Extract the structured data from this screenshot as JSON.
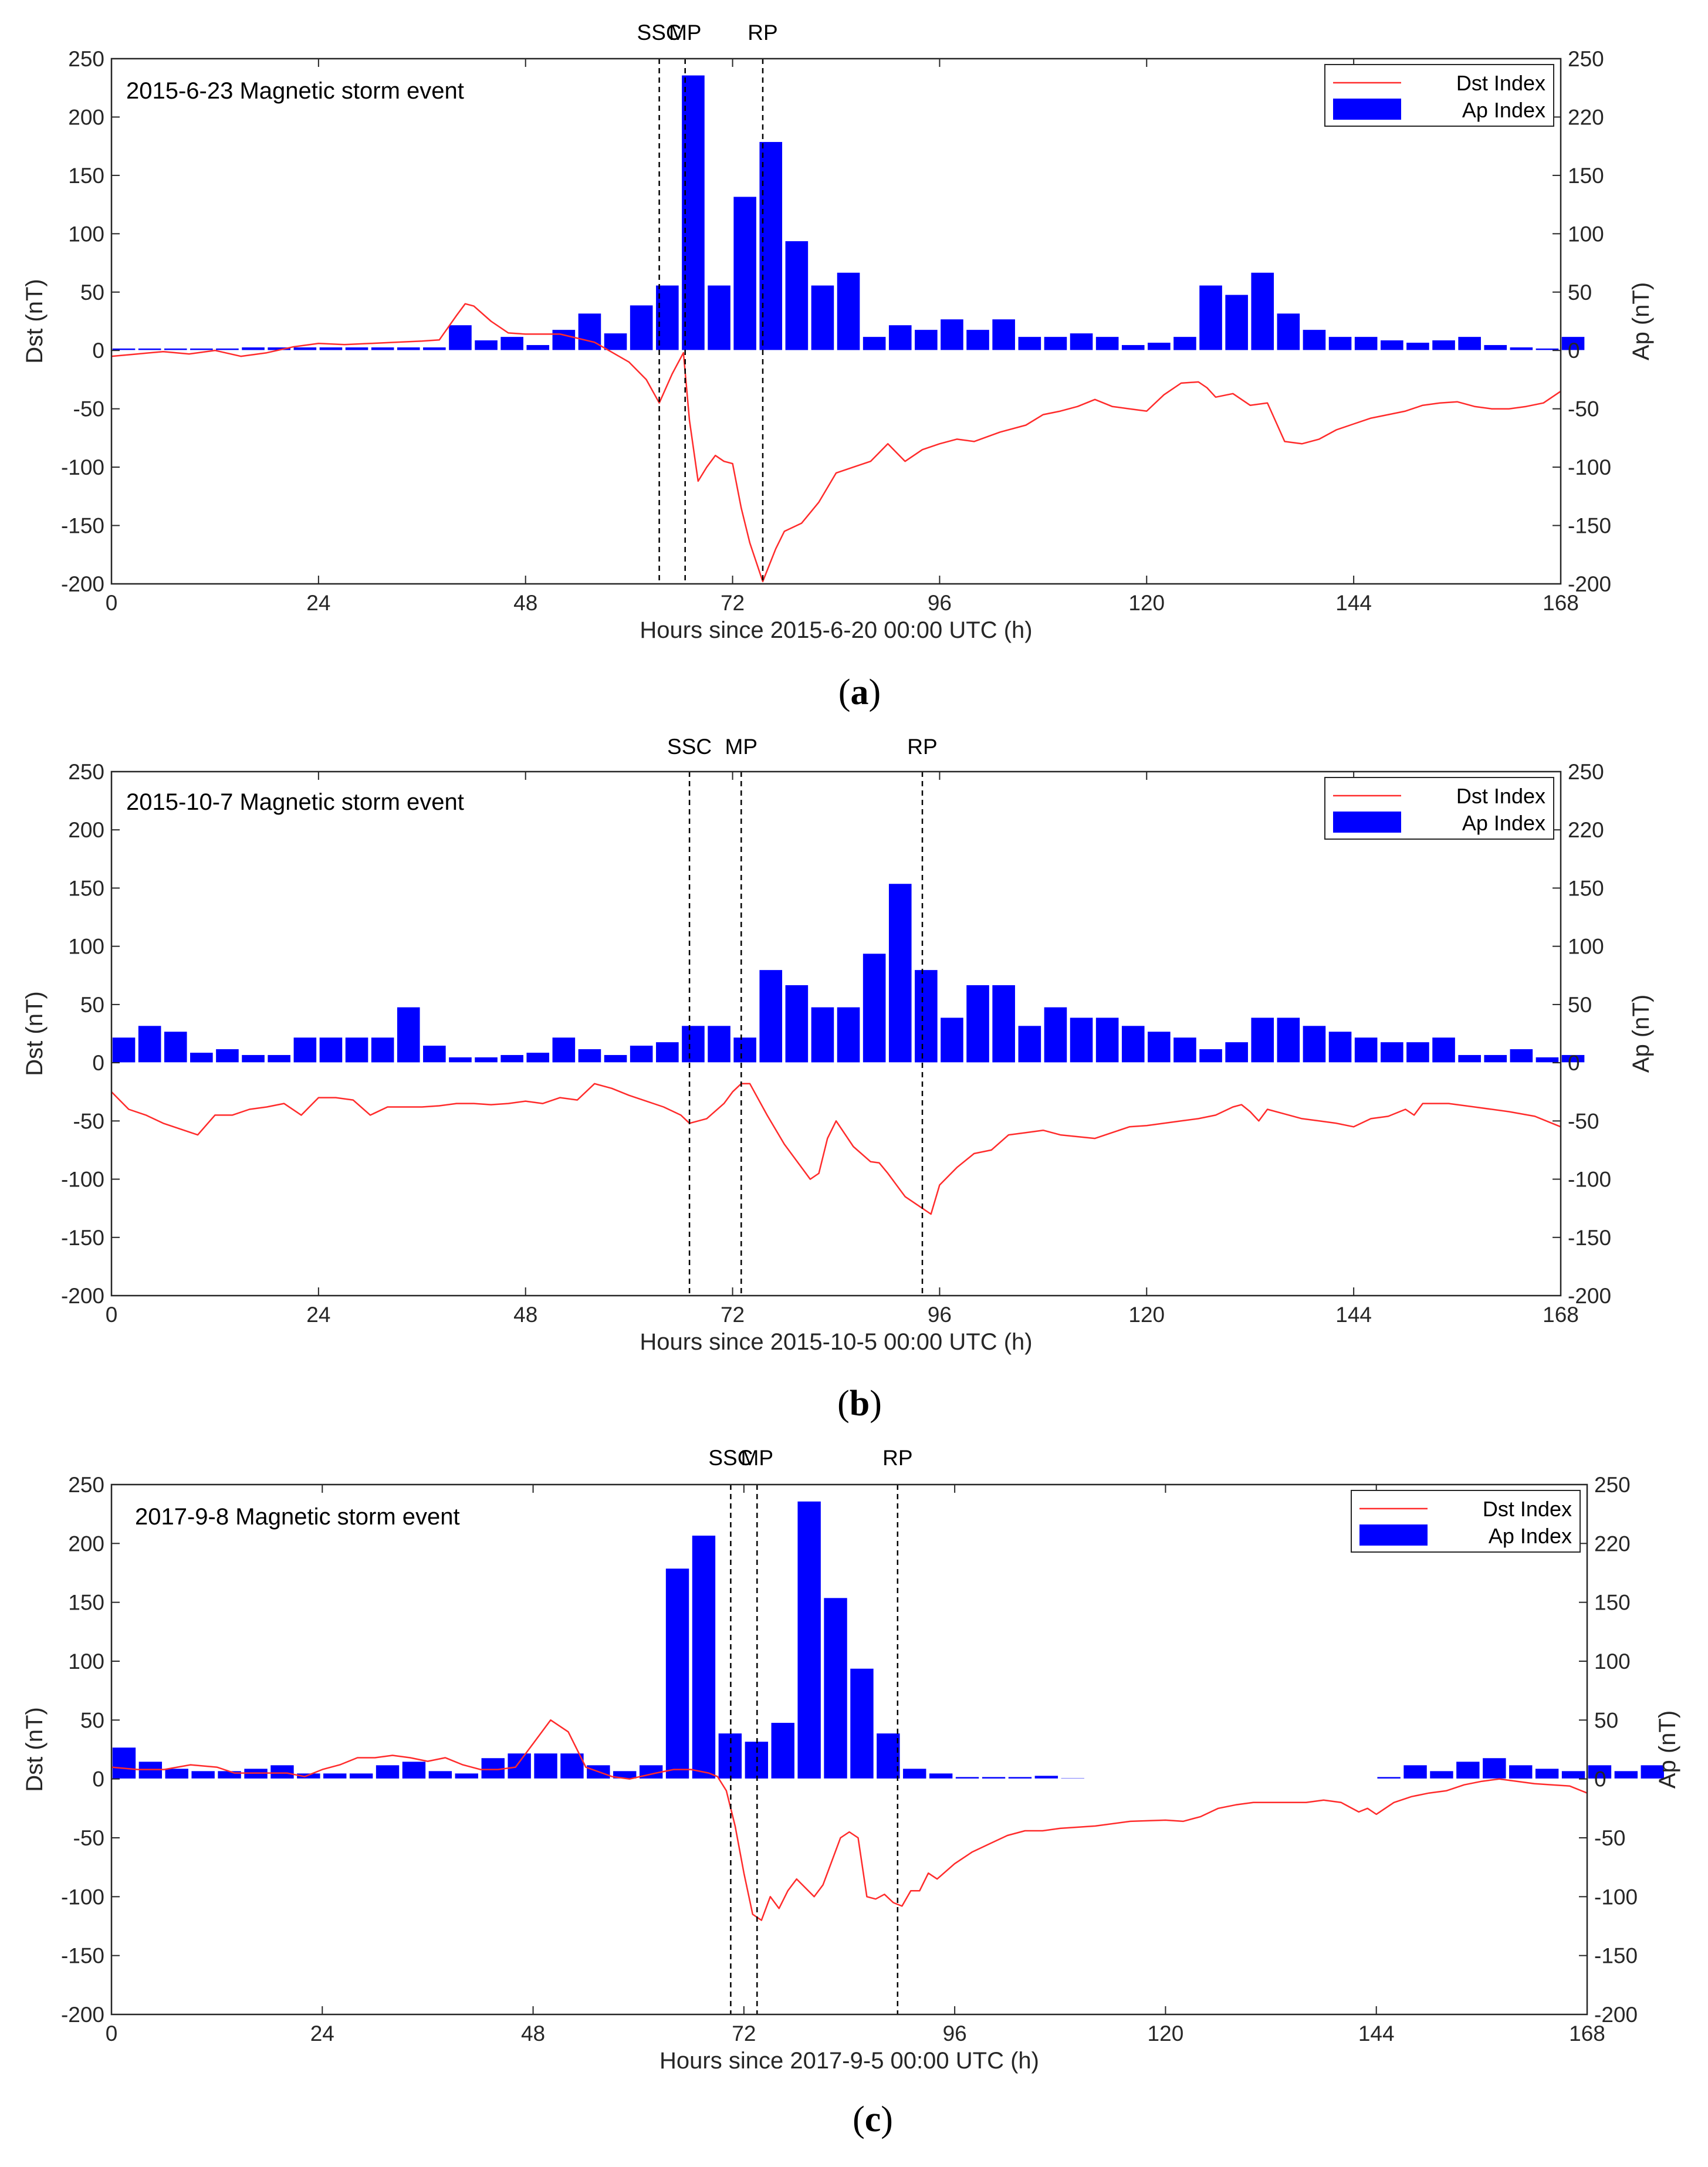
{
  "chart_data": [
    {
      "type": "bar+line",
      "caption": "a",
      "title": "2015-6-23 Magnetic storm event",
      "xlabel": "Hours since 2015-6-20 00:00 UTC (h)",
      "ylabel_left": "Dst (nT)",
      "ylabel_right": "Ap (nT)",
      "xlim": [
        0,
        168
      ],
      "ylim": [
        -200,
        250
      ],
      "x_ticks": [
        0,
        24,
        48,
        72,
        96,
        120,
        144,
        168
      ],
      "y_ticks_left": [
        -200,
        -150,
        -100,
        -50,
        0,
        50,
        100,
        150,
        200,
        250
      ],
      "y_ticks_right": [
        -200,
        -150,
        -100,
        -50,
        0,
        50,
        100,
        150,
        220,
        250
      ],
      "legend": {
        "line": "Dst Index",
        "bar": "Ap Index",
        "position": "top-right"
      },
      "markers": [
        {
          "label": "SSC",
          "x": 63.5
        },
        {
          "label": "MP",
          "x": 66.5
        },
        {
          "label": "RP",
          "x": 75.5
        }
      ],
      "ap_3h": [
        2,
        2,
        2,
        2,
        2,
        3,
        3,
        3,
        3,
        3,
        3,
        3,
        3,
        22,
        9,
        12,
        5,
        18,
        32,
        15,
        39,
        56,
        236,
        56,
        132,
        179,
        94,
        56,
        67,
        12,
        22,
        18,
        27,
        18,
        27,
        12,
        12,
        15,
        12,
        5,
        7,
        12,
        56,
        48,
        67,
        32,
        18,
        12,
        12,
        9,
        7,
        9,
        12,
        5,
        3,
        2,
        12
      ],
      "dst_series": [
        [
          0,
          -5
        ],
        [
          3,
          -3
        ],
        [
          6,
          -1
        ],
        [
          9,
          -3
        ],
        [
          12,
          0
        ],
        [
          15,
          -5
        ],
        [
          18,
          -2
        ],
        [
          21,
          3
        ],
        [
          24,
          6
        ],
        [
          27,
          5
        ],
        [
          30,
          6
        ],
        [
          33,
          7
        ],
        [
          36,
          8
        ],
        [
          38,
          9
        ],
        [
          40,
          30
        ],
        [
          41,
          40
        ],
        [
          42,
          38
        ],
        [
          44,
          25
        ],
        [
          46,
          15
        ],
        [
          48,
          14
        ],
        [
          52,
          14
        ],
        [
          56,
          7
        ],
        [
          60,
          -10
        ],
        [
          62,
          -25
        ],
        [
          63.5,
          -45
        ],
        [
          65,
          -20
        ],
        [
          66.3,
          -2
        ],
        [
          67,
          -60
        ],
        [
          68,
          -112
        ],
        [
          69,
          -100
        ],
        [
          70,
          -90
        ],
        [
          71,
          -95
        ],
        [
          72,
          -97
        ],
        [
          73,
          -135
        ],
        [
          74,
          -165
        ],
        [
          75.5,
          -198
        ],
        [
          77,
          -170
        ],
        [
          78,
          -155
        ],
        [
          80,
          -148
        ],
        [
          82,
          -130
        ],
        [
          84,
          -105
        ],
        [
          86,
          -100
        ],
        [
          88,
          -95
        ],
        [
          90,
          -80
        ],
        [
          92,
          -95
        ],
        [
          94,
          -85
        ],
        [
          96,
          -80
        ],
        [
          98,
          -76
        ],
        [
          100,
          -78
        ],
        [
          103,
          -70
        ],
        [
          106,
          -64
        ],
        [
          108,
          -55
        ],
        [
          110,
          -52
        ],
        [
          112,
          -48
        ],
        [
          114,
          -42
        ],
        [
          116,
          -48
        ],
        [
          118,
          -50
        ],
        [
          120,
          -52
        ],
        [
          122,
          -38
        ],
        [
          124,
          -28
        ],
        [
          126,
          -27
        ],
        [
          127,
          -32
        ],
        [
          128,
          -40
        ],
        [
          130,
          -37
        ],
        [
          132,
          -47
        ],
        [
          134,
          -45
        ],
        [
          136,
          -78
        ],
        [
          138,
          -80
        ],
        [
          140,
          -76
        ],
        [
          142,
          -68
        ],
        [
          144,
          -63
        ],
        [
          146,
          -58
        ],
        [
          148,
          -55
        ],
        [
          150,
          -52
        ],
        [
          152,
          -47
        ],
        [
          154,
          -45
        ],
        [
          156,
          -44
        ],
        [
          158,
          -48
        ],
        [
          160,
          -50
        ],
        [
          162,
          -50
        ],
        [
          164,
          -48
        ],
        [
          166,
          -45
        ],
        [
          168,
          -35
        ]
      ]
    },
    {
      "type": "bar+line",
      "caption": "b",
      "title": "2015-10-7 Magnetic storm event",
      "xlabel": "Hours since 2015-10-5 00:00 UTC (h)",
      "ylabel_left": "Dst (nT)",
      "ylabel_right": "Ap (nT)",
      "xlim": [
        0,
        168
      ],
      "ylim": [
        -200,
        250
      ],
      "x_ticks": [
        0,
        24,
        48,
        72,
        96,
        120,
        144,
        168
      ],
      "y_ticks_left": [
        -200,
        -150,
        -100,
        -50,
        0,
        50,
        100,
        150,
        200,
        250
      ],
      "y_ticks_right": [
        -200,
        -150,
        -100,
        -50,
        0,
        50,
        100,
        150,
        220,
        250
      ],
      "legend": {
        "line": "Dst Index",
        "bar": "Ap Index",
        "position": "top-right"
      },
      "markers": [
        {
          "label": "SSC",
          "x": 67
        },
        {
          "label": "MP",
          "x": 73
        },
        {
          "label": "RP",
          "x": 94
        }
      ],
      "ap_3h": [
        22,
        32,
        27,
        9,
        12,
        7,
        7,
        22,
        22,
        22,
        22,
        48,
        15,
        5,
        5,
        7,
        9,
        22,
        12,
        7,
        15,
        18,
        32,
        32,
        22,
        80,
        67,
        48,
        48,
        94,
        154,
        80,
        39,
        67,
        67,
        32,
        48,
        39,
        39,
        32,
        27,
        22,
        12,
        18,
        39,
        39,
        32,
        27,
        22,
        18,
        18,
        22,
        7,
        7,
        12,
        5,
        7
      ],
      "dst_series": [
        [
          0,
          -25
        ],
        [
          2,
          -40
        ],
        [
          4,
          -45
        ],
        [
          6,
          -52
        ],
        [
          8,
          -57
        ],
        [
          10,
          -62
        ],
        [
          12,
          -45
        ],
        [
          14,
          -45
        ],
        [
          16,
          -40
        ],
        [
          18,
          -38
        ],
        [
          20,
          -35
        ],
        [
          22,
          -45
        ],
        [
          24,
          -30
        ],
        [
          26,
          -30
        ],
        [
          28,
          -32
        ],
        [
          30,
          -45
        ],
        [
          32,
          -38
        ],
        [
          34,
          -38
        ],
        [
          36,
          -38
        ],
        [
          38,
          -37
        ],
        [
          40,
          -35
        ],
        [
          42,
          -35
        ],
        [
          44,
          -36
        ],
        [
          46,
          -35
        ],
        [
          48,
          -33
        ],
        [
          50,
          -35
        ],
        [
          52,
          -30
        ],
        [
          54,
          -32
        ],
        [
          56,
          -18
        ],
        [
          58,
          -22
        ],
        [
          60,
          -28
        ],
        [
          62,
          -33
        ],
        [
          64,
          -38
        ],
        [
          66,
          -45
        ],
        [
          67,
          -52
        ],
        [
          69,
          -48
        ],
        [
          71,
          -35
        ],
        [
          72,
          -25
        ],
        [
          73,
          -18
        ],
        [
          74,
          -18
        ],
        [
          76,
          -45
        ],
        [
          78,
          -70
        ],
        [
          80,
          -90
        ],
        [
          81,
          -100
        ],
        [
          82,
          -95
        ],
        [
          83,
          -65
        ],
        [
          84,
          -50
        ],
        [
          86,
          -72
        ],
        [
          88,
          -85
        ],
        [
          89,
          -86
        ],
        [
          90,
          -95
        ],
        [
          92,
          -115
        ],
        [
          94,
          -125
        ],
        [
          95,
          -130
        ],
        [
          96,
          -105
        ],
        [
          98,
          -90
        ],
        [
          100,
          -78
        ],
        [
          102,
          -75
        ],
        [
          104,
          -62
        ],
        [
          106,
          -60
        ],
        [
          108,
          -58
        ],
        [
          110,
          -62
        ],
        [
          114,
          -65
        ],
        [
          116,
          -60
        ],
        [
          118,
          -55
        ],
        [
          120,
          -54
        ],
        [
          122,
          -52
        ],
        [
          124,
          -50
        ],
        [
          126,
          -48
        ],
        [
          128,
          -45
        ],
        [
          130,
          -38
        ],
        [
          131,
          -36
        ],
        [
          132,
          -42
        ],
        [
          133,
          -50
        ],
        [
          134,
          -40
        ],
        [
          136,
          -44
        ],
        [
          138,
          -48
        ],
        [
          140,
          -50
        ],
        [
          142,
          -52
        ],
        [
          144,
          -55
        ],
        [
          146,
          -48
        ],
        [
          148,
          -46
        ],
        [
          150,
          -40
        ],
        [
          151,
          -45
        ],
        [
          152,
          -35
        ],
        [
          155,
          -35
        ],
        [
          158,
          -38
        ],
        [
          162,
          -42
        ],
        [
          165,
          -46
        ],
        [
          168,
          -55
        ]
      ]
    },
    {
      "type": "bar+line",
      "caption": "c",
      "title": "2017-9-8 Magnetic storm event",
      "xlabel": "Hours since 2017-9-5 00:00 UTC (h)",
      "ylabel_left": "Dst (nT)",
      "ylabel_right": "Ap (nT)",
      "xlim": [
        0,
        168
      ],
      "ylim": [
        -200,
        250
      ],
      "x_ticks": [
        0,
        24,
        48,
        72,
        96,
        120,
        144,
        168
      ],
      "y_ticks_left": [
        -200,
        -150,
        -100,
        -50,
        0,
        50,
        100,
        150,
        200,
        250
      ],
      "y_ticks_right": [
        -200,
        -150,
        -100,
        -50,
        0,
        50,
        100,
        150,
        220,
        250
      ],
      "legend": {
        "line": "Dst Index",
        "bar": "Ap Index",
        "position": "top-right"
      },
      "markers": [
        {
          "label": "SSC",
          "x": 70.5
        },
        {
          "label": "MP",
          "x": 73.5
        },
        {
          "label": "RP",
          "x": 89.5
        }
      ],
      "ap_3h": [
        27,
        15,
        9,
        7,
        7,
        9,
        12,
        5,
        5,
        5,
        12,
        15,
        7,
        5,
        18,
        22,
        22,
        22,
        12,
        7,
        12,
        179,
        207,
        39,
        32,
        48,
        236,
        154,
        94,
        39,
        9,
        5,
        2,
        2,
        2,
        3,
        1,
        0,
        0,
        0,
        0,
        0,
        0,
        0,
        0,
        0,
        0,
        0,
        2,
        12,
        7,
        15,
        18,
        12,
        9,
        7,
        12,
        7,
        12
      ],
      "dst_series": [
        [
          0,
          10
        ],
        [
          3,
          8
        ],
        [
          6,
          8
        ],
        [
          9,
          12
        ],
        [
          12,
          10
        ],
        [
          14,
          5
        ],
        [
          16,
          5
        ],
        [
          18,
          5
        ],
        [
          20,
          5
        ],
        [
          22,
          2
        ],
        [
          24,
          8
        ],
        [
          26,
          12
        ],
        [
          28,
          18
        ],
        [
          30,
          18
        ],
        [
          32,
          20
        ],
        [
          34,
          18
        ],
        [
          36,
          15
        ],
        [
          38,
          18
        ],
        [
          40,
          12
        ],
        [
          42,
          8
        ],
        [
          44,
          8
        ],
        [
          46,
          10
        ],
        [
          48,
          30
        ],
        [
          50,
          50
        ],
        [
          52,
          40
        ],
        [
          54,
          10
        ],
        [
          57,
          2
        ],
        [
          59,
          0
        ],
        [
          62,
          5
        ],
        [
          64,
          8
        ],
        [
          66,
          8
        ],
        [
          68,
          5
        ],
        [
          69,
          2
        ],
        [
          70,
          -10
        ],
        [
          71,
          -40
        ],
        [
          72,
          -80
        ],
        [
          73,
          -115
        ],
        [
          74,
          -120
        ],
        [
          75,
          -100
        ],
        [
          76,
          -110
        ],
        [
          77,
          -95
        ],
        [
          78,
          -85
        ],
        [
          80,
          -100
        ],
        [
          81,
          -90
        ],
        [
          82,
          -70
        ],
        [
          83,
          -50
        ],
        [
          84,
          -45
        ],
        [
          85,
          -50
        ],
        [
          86,
          -100
        ],
        [
          87,
          -102
        ],
        [
          88,
          -98
        ],
        [
          89,
          -105
        ],
        [
          90,
          -108
        ],
        [
          91,
          -95
        ],
        [
          92,
          -95
        ],
        [
          93,
          -80
        ],
        [
          94,
          -85
        ],
        [
          96,
          -72
        ],
        [
          98,
          -62
        ],
        [
          100,
          -55
        ],
        [
          102,
          -48
        ],
        [
          104,
          -44
        ],
        [
          106,
          -44
        ],
        [
          108,
          -42
        ],
        [
          112,
          -40
        ],
        [
          116,
          -36
        ],
        [
          120,
          -35
        ],
        [
          122,
          -36
        ],
        [
          124,
          -32
        ],
        [
          126,
          -25
        ],
        [
          128,
          -22
        ],
        [
          130,
          -20
        ],
        [
          132,
          -20
        ],
        [
          134,
          -20
        ],
        [
          136,
          -20
        ],
        [
          138,
          -18
        ],
        [
          140,
          -20
        ],
        [
          142,
          -28
        ],
        [
          143,
          -25
        ],
        [
          144,
          -30
        ],
        [
          146,
          -20
        ],
        [
          148,
          -15
        ],
        [
          150,
          -12
        ],
        [
          152,
          -10
        ],
        [
          154,
          -5
        ],
        [
          156,
          -2
        ],
        [
          158,
          0
        ],
        [
          160,
          -2
        ],
        [
          162,
          -4
        ],
        [
          164,
          -5
        ],
        [
          166,
          -6
        ],
        [
          168,
          -12
        ]
      ]
    }
  ]
}
